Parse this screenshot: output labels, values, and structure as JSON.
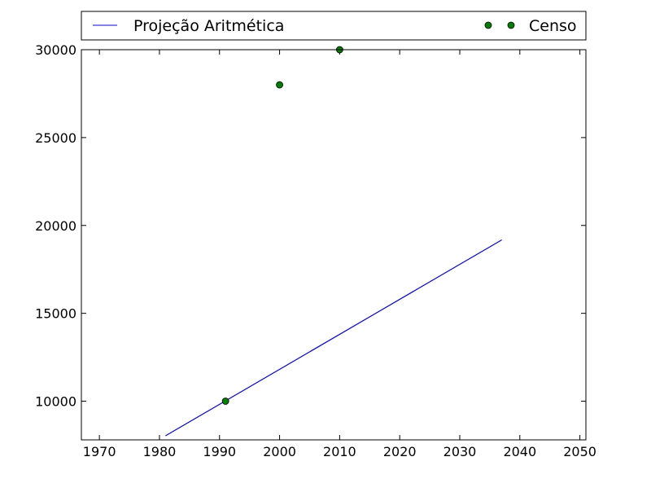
{
  "chart_data": {
    "type": "line",
    "title": "",
    "xlabel": "",
    "ylabel": "",
    "xlim": [
      1967,
      2051
    ],
    "ylim": [
      7800,
      30000
    ],
    "x_ticks": [
      1970,
      1980,
      1990,
      2000,
      2010,
      2020,
      2030,
      2040,
      2050
    ],
    "y_ticks": [
      10000,
      15000,
      20000,
      25000,
      30000
    ],
    "grid": false,
    "legend_position": "top",
    "series": [
      {
        "name": "Projeção Aritmética",
        "kind": "line",
        "color": "#0000ff",
        "points": [
          {
            "x": 1981,
            "y": 8030
          },
          {
            "x": 2037,
            "y": 19180
          }
        ]
      },
      {
        "name": "Censo",
        "kind": "markers",
        "color": "#008000",
        "points": [
          {
            "x": 1991,
            "y": 10000
          },
          {
            "x": 2000,
            "y": 28000
          },
          {
            "x": 2010,
            "y": 30000
          }
        ]
      }
    ]
  }
}
